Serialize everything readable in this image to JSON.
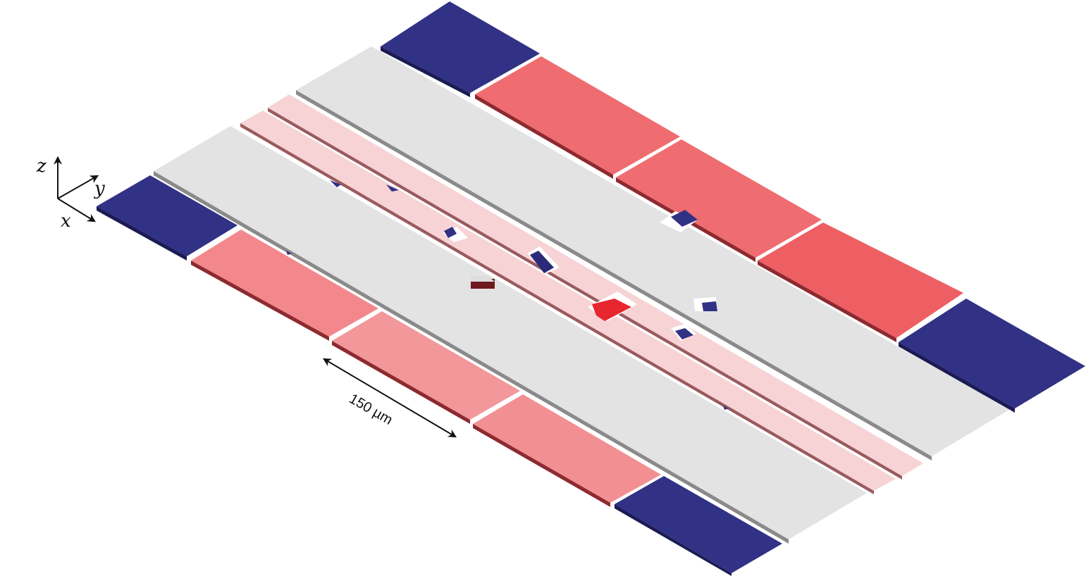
{
  "figure": {
    "scale_bar": {
      "label": "150 µm"
    },
    "axes": {
      "z": "z",
      "y": "y",
      "x": "x"
    },
    "colors": {
      "background": "#ffffff",
      "ground_electrode": "#e3e3e3",
      "rf_electrode": "#f7d3d5",
      "dc_positive_light": "#f28f93",
      "dc_positive_dark": "#ee6467",
      "dc_negative": "#313185",
      "shadow_edge": "#8a8a8a",
      "hot_spot": "#e8262d"
    }
  }
}
